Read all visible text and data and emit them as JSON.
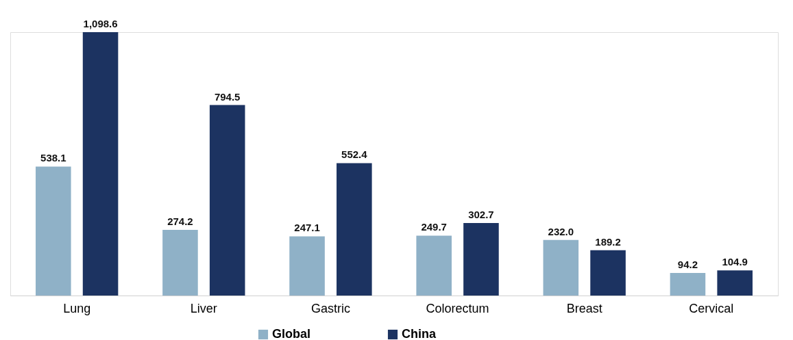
{
  "chart_data": {
    "type": "bar",
    "categories": [
      "Lung",
      "Liver",
      "Gastric",
      "Colorectum",
      "Breast",
      "Cervical"
    ],
    "series": [
      {
        "name": "Global",
        "color": "#8fb1c7",
        "values": [
          538.1,
          274.2,
          247.1,
          249.7,
          232.0,
          94.2
        ],
        "value_labels": [
          "538.1",
          "274.2",
          "247.1",
          "249.7",
          "232.0",
          "94.2"
        ]
      },
      {
        "name": "China",
        "color": "#1c3361",
        "values": [
          1098.6,
          794.5,
          552.4,
          302.7,
          189.2,
          104.9
        ],
        "value_labels": [
          "1,098.6",
          "794.5",
          "552.4",
          "302.7",
          "189.2",
          "104.9"
        ]
      }
    ],
    "legend": "bottom",
    "grid": false
  }
}
